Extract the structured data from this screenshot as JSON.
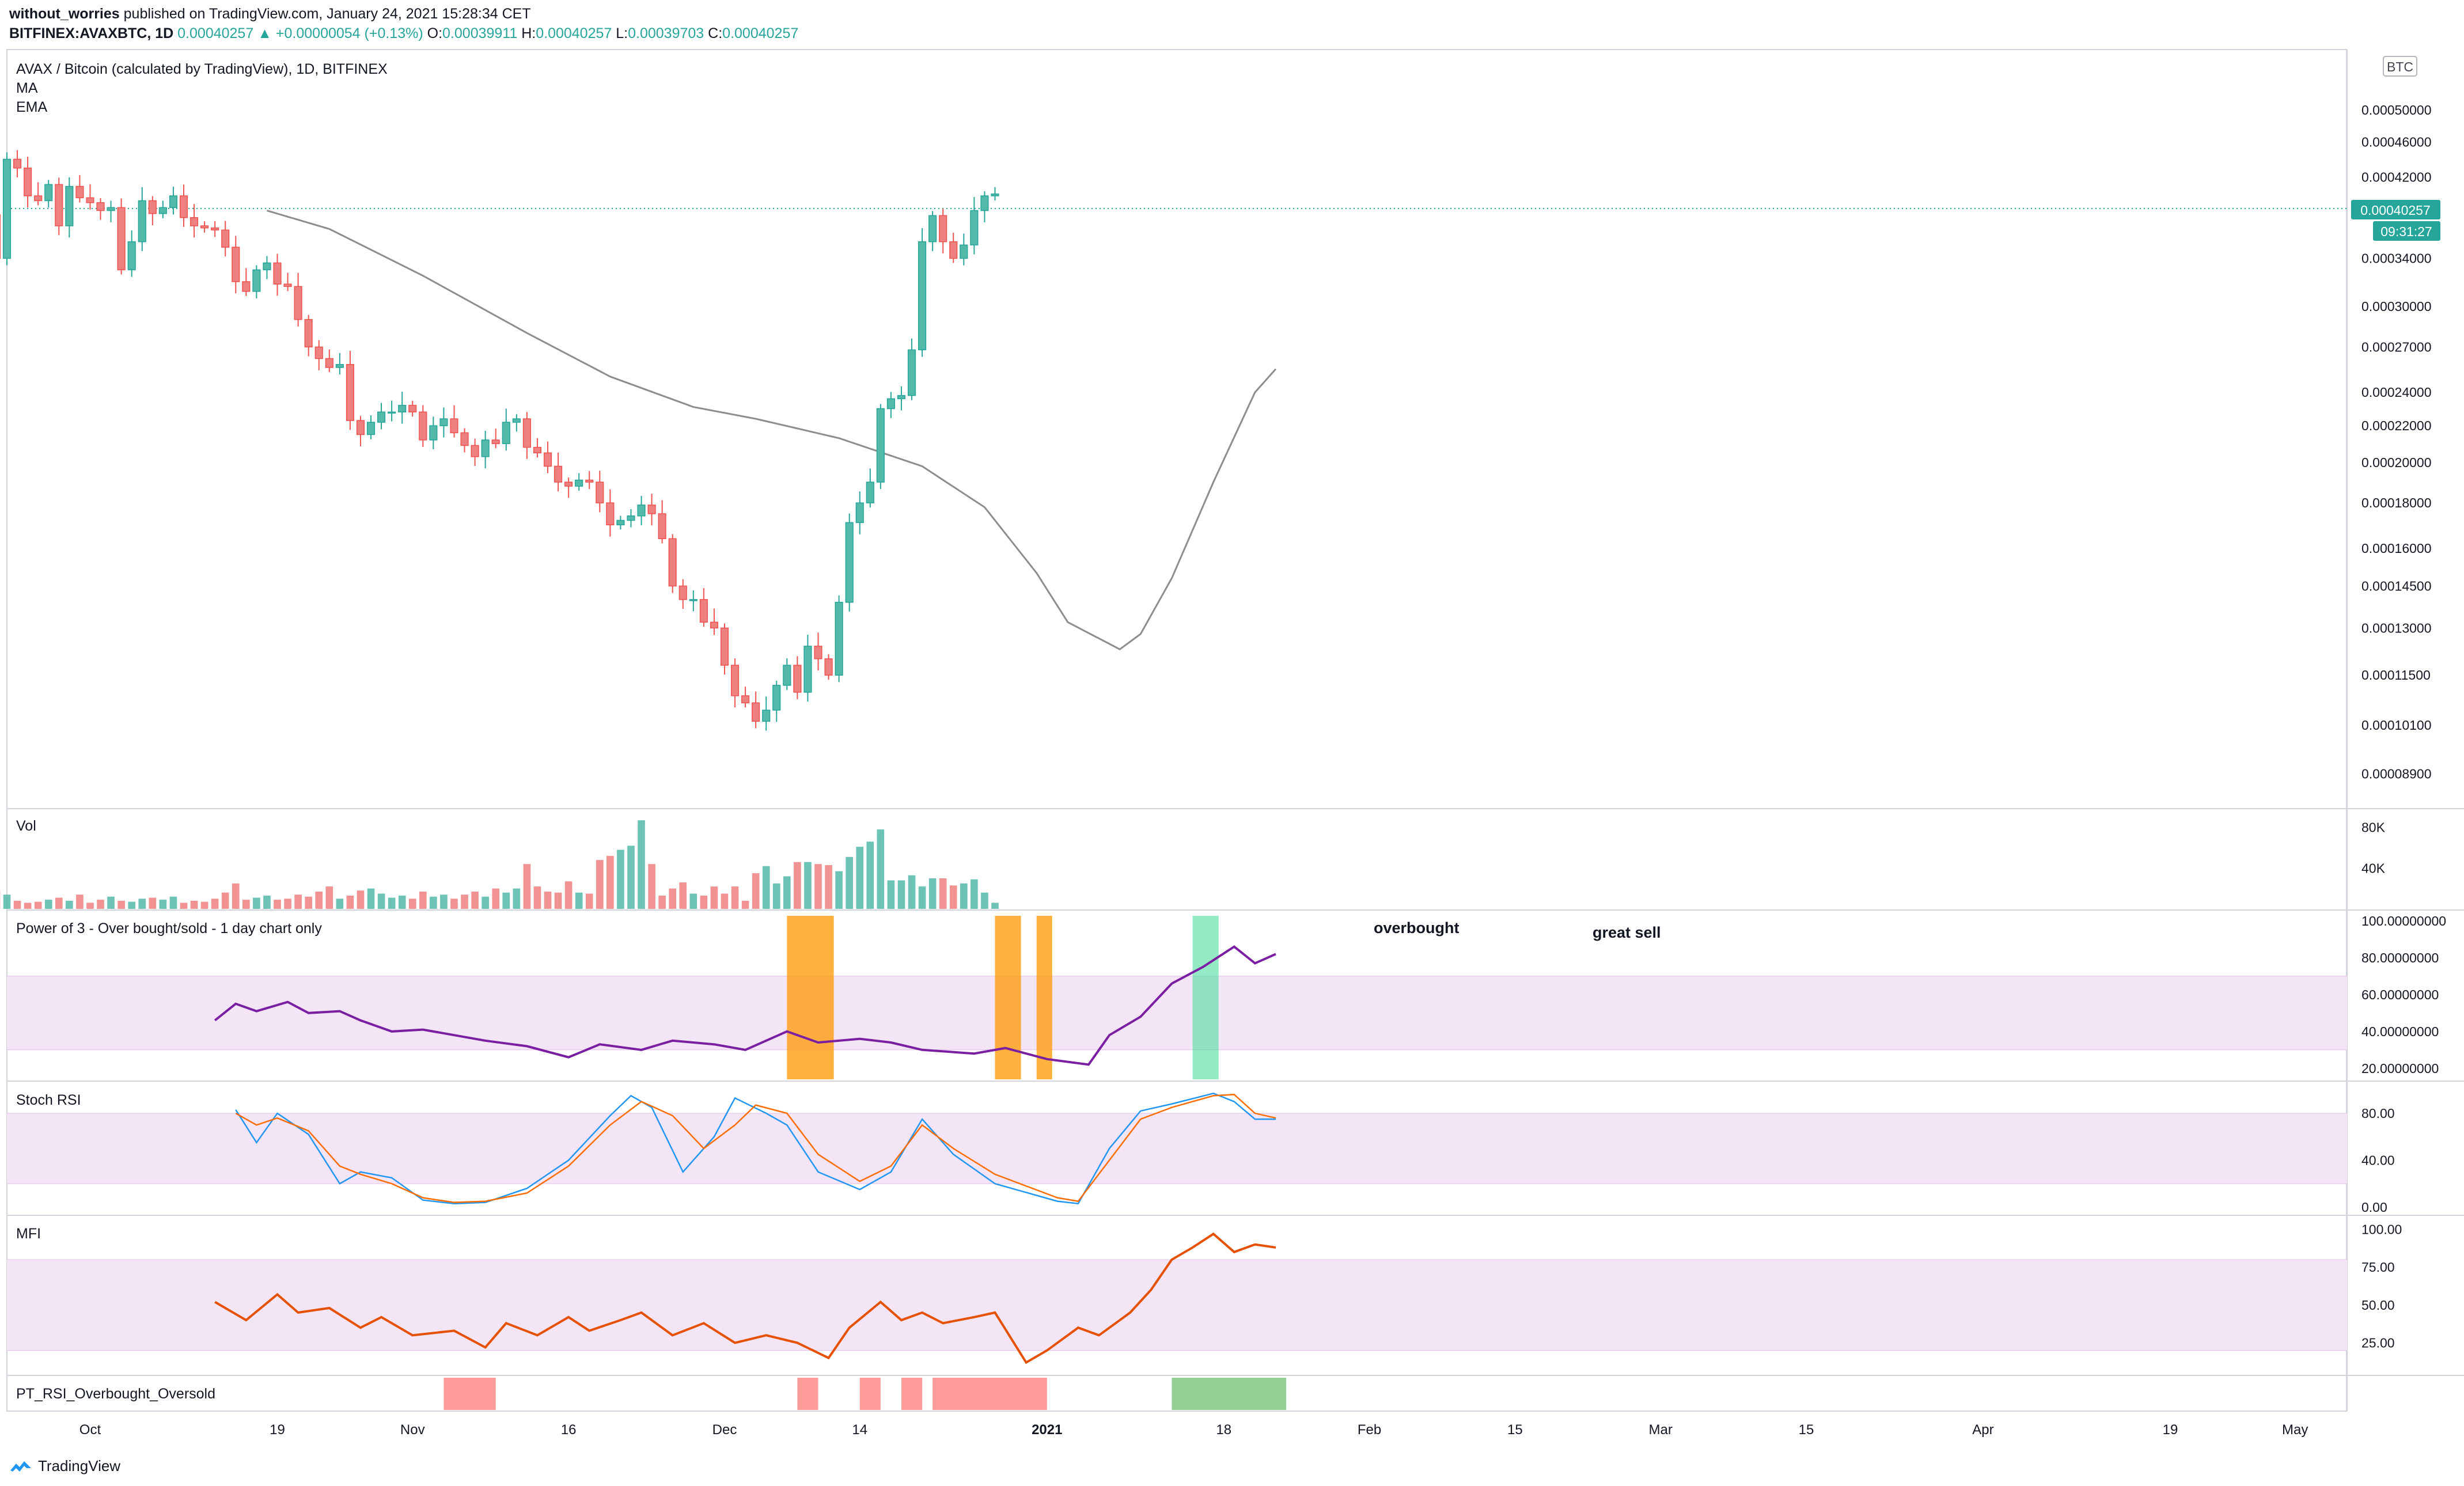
{
  "header": {
    "user": "without_worries",
    "published": "published on TradingView.com, January 24, 2021 15:28:34 CET",
    "symbol": "BITFINEX:AVAXBTC, 1D",
    "last": "0.00040257",
    "change": "+0.00000054 (+0.13%)",
    "o_label": "O:",
    "o": "0.00039911",
    "h_label": "H:",
    "h": "0.00040257",
    "l_label": "L:",
    "l": "0.00039703",
    "c_label": "C:",
    "c": "0.00040257"
  },
  "legend": {
    "title": "AVAX / Bitcoin (calculated by TradingView), 1D, BITFINEX",
    "ma": "MA",
    "ema": "EMA"
  },
  "price_axis": {
    "currency_badge": "BTC",
    "last_price_label": "0.00040257",
    "countdown": "09:31:27"
  },
  "panes": {
    "vol": "Vol",
    "power": "Power of 3 - Over bought/sold - 1 day chart only",
    "stoch": "Stoch RSI",
    "mfi": "MFI",
    "pt": "PT_RSI_Overbought_Oversold"
  },
  "annotations": {
    "overbought": "overbought",
    "great_sell": "great sell"
  },
  "footer": {
    "brand": "TradingView"
  },
  "colors": {
    "up": "#26a69a",
    "up_fill": "#53b9a8",
    "down": "#ef5350",
    "down_fill": "#ef8080",
    "ma": "#8d8d8d",
    "power_line": "#7b1fa2",
    "stoch_k": "#2196f3",
    "stoch_d": "#ff6d00",
    "mfi_line": "#e65100",
    "band": "#f3e5f5",
    "orange_bar": "#ff9800",
    "green_bar": "#4cdd9e"
  },
  "chart_data": [
    {
      "type": "candlestick",
      "title": "AVAX / Bitcoin (calculated by TradingView), 1D, BITFINEX",
      "scale": "log",
      "ylim": [
        8.2e-05,
        0.00058
      ],
      "yticks": [
        "0.00050000",
        "0.00046000",
        "0.00042000",
        "0.00034000",
        "0.00030000",
        "0.00027000",
        "0.00024000",
        "0.00022000",
        "0.00020000",
        "0.00018000",
        "0.00016000",
        "0.00014500",
        "0.00013000",
        "0.00011500",
        "0.00010100",
        "0.00008900"
      ],
      "xticks": [
        "Oct",
        "19",
        "Nov",
        "16",
        "Dec",
        "14",
        "2021",
        "18",
        "Feb",
        "15",
        "Mar",
        "15",
        "Apr",
        "19",
        "May"
      ],
      "x_start": "2020-09-23",
      "x_end": "2021-05-06",
      "first_candle": "2020-09-22",
      "close": [
        0.00034,
        0.00044,
        0.00043,
        0.0004,
        0.000395,
        0.000412,
        0.00037,
        0.00041,
        0.000398,
        0.000393,
        0.000385,
        0.000388,
        0.00033,
        0.000355,
        0.000395,
        0.000382,
        0.000388,
        0.0004,
        0.000378,
        0.00037,
        0.000368,
        0.000366,
        0.00035,
        0.00032,
        0.000312,
        0.00033,
        0.000336,
        0.000318,
        0.000316,
        0.00029,
        0.00027,
        0.000262,
        0.000256,
        0.000258,
        0.000223,
        0.000215,
        0.000222,
        0.000228,
        0.000228,
        0.000232,
        0.000228,
        0.000212,
        0.00022,
        0.000224,
        0.000216,
        0.000209,
        0.000203,
        0.000212,
        0.00021,
        0.000222,
        0.000224,
        0.000208,
        0.000205,
        0.000198,
        0.00019,
        0.000188,
        0.000191,
        0.00019,
        0.00018,
        0.00017,
        0.000172,
        0.000174,
        0.000179,
        0.000175,
        0.000164,
        0.000145,
        0.00014,
        0.00014,
        0.000132,
        0.00013,
        0.000118,
        0.000109,
        0.000107,
        0.000102,
        0.000105,
        0.000112,
        0.000118,
        0.00011,
        0.000124,
        0.00012,
        0.000115,
        0.000139,
        0.000171,
        0.00018,
        0.00019,
        0.00023,
        0.000236,
        0.000238,
        0.000268,
        0.000355,
        0.00038,
        0.000355,
        0.00034,
        0.000352,
        0.000385,
        0.0004,
        0.000402
      ],
      "ma": [
        [
          0.000385,
          "2020-10-18"
        ],
        [
          0.000367,
          "2020-10-24"
        ],
        [
          0.000325,
          "2020-11-02"
        ],
        [
          0.00028,
          "2020-11-12"
        ],
        [
          0.00025,
          "2020-11-20"
        ],
        [
          0.000231,
          "2020-11-28"
        ],
        [
          0.000224,
          "2020-12-04"
        ],
        [
          0.000213,
          "2020-12-12"
        ],
        [
          0.000198,
          "2020-12-20"
        ],
        [
          0.000178,
          "2020-12-26"
        ],
        [
          0.00015,
          "2020-12-31"
        ],
        [
          0.000132,
          "2021-01-03"
        ],
        [
          0.000123,
          "2021-01-08"
        ],
        [
          0.000128,
          "2021-01-10"
        ],
        [
          0.000148,
          "2021-01-13"
        ],
        [
          0.00019,
          "2021-01-17"
        ],
        [
          0.00024,
          "2021-01-21"
        ],
        [
          0.000255,
          "2021-01-23"
        ]
      ]
    },
    {
      "type": "bar",
      "title": "Vol",
      "ylim": [
        0,
        95000
      ],
      "yticks": [
        "80K",
        "40K"
      ],
      "values": [
        18000,
        14000,
        8000,
        6000,
        7000,
        9000,
        11000,
        8000,
        14000,
        6000,
        9000,
        12000,
        8000,
        7000,
        10000,
        11000,
        9000,
        12000,
        6000,
        8000,
        7000,
        10000,
        16000,
        25000,
        9000,
        11000,
        13000,
        9000,
        10000,
        14000,
        12000,
        17000,
        22000,
        10000,
        13000,
        18000,
        20000,
        15000,
        11000,
        13000,
        10000,
        17000,
        12000,
        14000,
        10000,
        14000,
        17000,
        12000,
        20000,
        16000,
        20000,
        44000,
        22000,
        17000,
        16000,
        27000,
        16000,
        15000,
        48000,
        52000,
        58000,
        62000,
        87000,
        44000,
        13000,
        20000,
        26000,
        15000,
        13000,
        22000,
        15000,
        22000,
        8000,
        35000,
        42000,
        25000,
        32000,
        46000,
        46000,
        44000,
        43000,
        37000,
        51000,
        61000,
        66000,
        78000,
        28000,
        28000,
        33000,
        22000,
        30000,
        30000,
        23000,
        25000,
        29000,
        16000,
        6000
      ]
    },
    {
      "type": "line",
      "title": "Power of 3 - Over bought/sold - 1 day chart only",
      "ylim": [
        14,
        104
      ],
      "yticks": [
        "100.00000000",
        "80.00000000",
        "60.00000000",
        "40.00000000",
        "20.00000000"
      ],
      "band": [
        30,
        70
      ],
      "series": [
        {
          "values": [
            [
              46,
              "2020-10-13"
            ],
            [
              55,
              "2020-10-15"
            ],
            [
              51,
              "2020-10-17"
            ],
            [
              56,
              "2020-10-20"
            ],
            [
              50,
              "2020-10-22"
            ],
            [
              51,
              "2020-10-25"
            ],
            [
              46,
              "2020-10-27"
            ],
            [
              40,
              "2020-10-30"
            ],
            [
              41,
              "2020-11-02"
            ],
            [
              38,
              "2020-11-05"
            ],
            [
              35,
              "2020-11-08"
            ],
            [
              32,
              "2020-11-12"
            ],
            [
              26,
              "2020-11-16"
            ],
            [
              33,
              "2020-11-19"
            ],
            [
              30,
              "2020-11-23"
            ],
            [
              35,
              "2020-11-26"
            ],
            [
              33,
              "2020-11-30"
            ],
            [
              30,
              "2020-12-03"
            ],
            [
              40,
              "2020-12-07"
            ],
            [
              34,
              "2020-12-10"
            ],
            [
              36,
              "2020-12-14"
            ],
            [
              34,
              "2020-12-17"
            ],
            [
              30,
              "2020-12-20"
            ],
            [
              28,
              "2020-12-25"
            ],
            [
              31,
              "2020-12-28"
            ],
            [
              25,
              "2021-01-01"
            ],
            [
              22,
              "2021-01-05"
            ],
            [
              38,
              "2021-01-07"
            ],
            [
              48,
              "2021-01-10"
            ],
            [
              66,
              "2021-01-13"
            ],
            [
              75,
              "2021-01-16"
            ],
            [
              86,
              "2021-01-19"
            ],
            [
              77,
              "2021-01-21"
            ],
            [
              82,
              "2021-01-23"
            ]
          ]
        }
      ],
      "highlights": [
        [
          "2020-12-07",
          "2020-12-11",
          "orange"
        ],
        [
          "2020-12-27",
          "2020-12-29",
          "orange"
        ],
        [
          "2020-12-31",
          "2021-01-01",
          "orange"
        ],
        [
          "2021-01-15",
          "2021-01-17",
          "green"
        ]
      ]
    },
    {
      "type": "line",
      "title": "Stoch RSI",
      "ylim": [
        -5,
        105
      ],
      "yticks": [
        "80.00",
        "40.00",
        "0.00"
      ],
      "band": [
        20,
        80
      ],
      "series": [
        {
          "values": [
            [
              83,
              "2020-10-15"
            ],
            [
              55,
              "2020-10-17"
            ],
            [
              80,
              "2020-10-19"
            ],
            [
              62,
              "2020-10-22"
            ],
            [
              20,
              "2020-10-25"
            ],
            [
              30,
              "2020-10-27"
            ],
            [
              25,
              "2020-10-30"
            ],
            [
              6,
              "2020-11-02"
            ],
            [
              3,
              "2020-11-05"
            ],
            [
              4,
              "2020-11-08"
            ],
            [
              16,
              "2020-11-12"
            ],
            [
              40,
              "2020-11-16"
            ],
            [
              78,
              "2020-11-20"
            ],
            [
              95,
              "2020-11-22"
            ],
            [
              85,
              "2020-11-24"
            ],
            [
              30,
              "2020-11-27"
            ],
            [
              60,
              "2020-11-30"
            ],
            [
              93,
              "2020-12-02"
            ],
            [
              80,
              "2020-12-05"
            ],
            [
              70,
              "2020-12-07"
            ],
            [
              30,
              "2020-12-10"
            ],
            [
              15,
              "2020-12-14"
            ],
            [
              30,
              "2020-12-17"
            ],
            [
              75,
              "2020-12-20"
            ],
            [
              45,
              "2020-12-23"
            ],
            [
              20,
              "2020-12-27"
            ],
            [
              5,
              "2021-01-02"
            ],
            [
              3,
              "2021-01-04"
            ],
            [
              50,
              "2021-01-07"
            ],
            [
              82,
              "2021-01-10"
            ],
            [
              88,
              "2021-01-13"
            ],
            [
              97,
              "2021-01-17"
            ],
            [
              90,
              "2021-01-19"
            ],
            [
              75,
              "2021-01-21"
            ],
            [
              75,
              "2021-01-23"
            ]
          ]
        },
        {
          "values": [
            [
              80,
              "2020-10-15"
            ],
            [
              70,
              "2020-10-17"
            ],
            [
              76,
              "2020-10-19"
            ],
            [
              65,
              "2020-10-22"
            ],
            [
              35,
              "2020-10-25"
            ],
            [
              28,
              "2020-10-27"
            ],
            [
              20,
              "2020-10-30"
            ],
            [
              8,
              "2020-11-02"
            ],
            [
              4,
              "2020-11-05"
            ],
            [
              5,
              "2020-11-08"
            ],
            [
              12,
              "2020-11-12"
            ],
            [
              35,
              "2020-11-16"
            ],
            [
              70,
              "2020-11-20"
            ],
            [
              90,
              "2020-11-23"
            ],
            [
              78,
              "2020-11-26"
            ],
            [
              50,
              "2020-11-29"
            ],
            [
              70,
              "2020-12-02"
            ],
            [
              87,
              "2020-12-04"
            ],
            [
              80,
              "2020-12-07"
            ],
            [
              45,
              "2020-12-10"
            ],
            [
              22,
              "2020-12-14"
            ],
            [
              35,
              "2020-12-17"
            ],
            [
              70,
              "2020-12-20"
            ],
            [
              50,
              "2020-12-23"
            ],
            [
              28,
              "2020-12-27"
            ],
            [
              8,
              "2021-01-02"
            ],
            [
              5,
              "2021-01-04"
            ],
            [
              40,
              "2021-01-07"
            ],
            [
              75,
              "2021-01-10"
            ],
            [
              85,
              "2021-01-13"
            ],
            [
              95,
              "2021-01-17"
            ],
            [
              96,
              "2021-01-19"
            ],
            [
              80,
              "2021-01-21"
            ],
            [
              76,
              "2021-01-23"
            ]
          ]
        }
      ]
    },
    {
      "type": "line",
      "title": "MFI",
      "ylim": [
        5,
        107
      ],
      "yticks": [
        "100.00",
        "75.00",
        "50.00",
        "25.00"
      ],
      "band": [
        20,
        80
      ],
      "series": [
        {
          "values": [
            [
              52,
              "2020-10-13"
            ],
            [
              40,
              "2020-10-16"
            ],
            [
              57,
              "2020-10-19"
            ],
            [
              45,
              "2020-10-21"
            ],
            [
              48,
              "2020-10-24"
            ],
            [
              35,
              "2020-10-27"
            ],
            [
              42,
              "2020-10-29"
            ],
            [
              30,
              "2020-11-01"
            ],
            [
              33,
              "2020-11-05"
            ],
            [
              22,
              "2020-11-08"
            ],
            [
              38,
              "2020-11-10"
            ],
            [
              30,
              "2020-11-13"
            ],
            [
              42,
              "2020-11-16"
            ],
            [
              33,
              "2020-11-18"
            ],
            [
              40,
              "2020-11-21"
            ],
            [
              45,
              "2020-11-23"
            ],
            [
              30,
              "2020-11-26"
            ],
            [
              38,
              "2020-11-29"
            ],
            [
              25,
              "2020-12-02"
            ],
            [
              30,
              "2020-12-05"
            ],
            [
              25,
              "2020-12-08"
            ],
            [
              15,
              "2020-12-11"
            ],
            [
              35,
              "2020-12-13"
            ],
            [
              52,
              "2020-12-16"
            ],
            [
              40,
              "2020-12-18"
            ],
            [
              45,
              "2020-12-20"
            ],
            [
              38,
              "2020-12-22"
            ],
            [
              42,
              "2020-12-25"
            ],
            [
              45,
              "2020-12-27"
            ],
            [
              12,
              "2020-12-30"
            ],
            [
              20,
              "2021-01-01"
            ],
            [
              35,
              "2021-01-04"
            ],
            [
              30,
              "2021-01-06"
            ],
            [
              45,
              "2021-01-09"
            ],
            [
              60,
              "2021-01-11"
            ],
            [
              80,
              "2021-01-13"
            ],
            [
              88,
              "2021-01-15"
            ],
            [
              97,
              "2021-01-17"
            ],
            [
              85,
              "2021-01-19"
            ],
            [
              90,
              "2021-01-21"
            ],
            [
              88,
              "2021-01-23"
            ]
          ]
        }
      ]
    },
    {
      "type": "bar",
      "title": "PT_RSI_Overbought_Oversold",
      "spans": [
        [
          "2020-11-04",
          "2020-11-09",
          "red"
        ],
        [
          "2020-12-08",
          "2020-12-10",
          "red"
        ],
        [
          "2020-12-14",
          "2020-12-16",
          "red"
        ],
        [
          "2020-12-18",
          "2020-12-20",
          "red"
        ],
        [
          "2020-12-21",
          "2021-01-01",
          "red"
        ],
        [
          "2021-01-13",
          "2021-01-24",
          "green"
        ]
      ]
    }
  ]
}
